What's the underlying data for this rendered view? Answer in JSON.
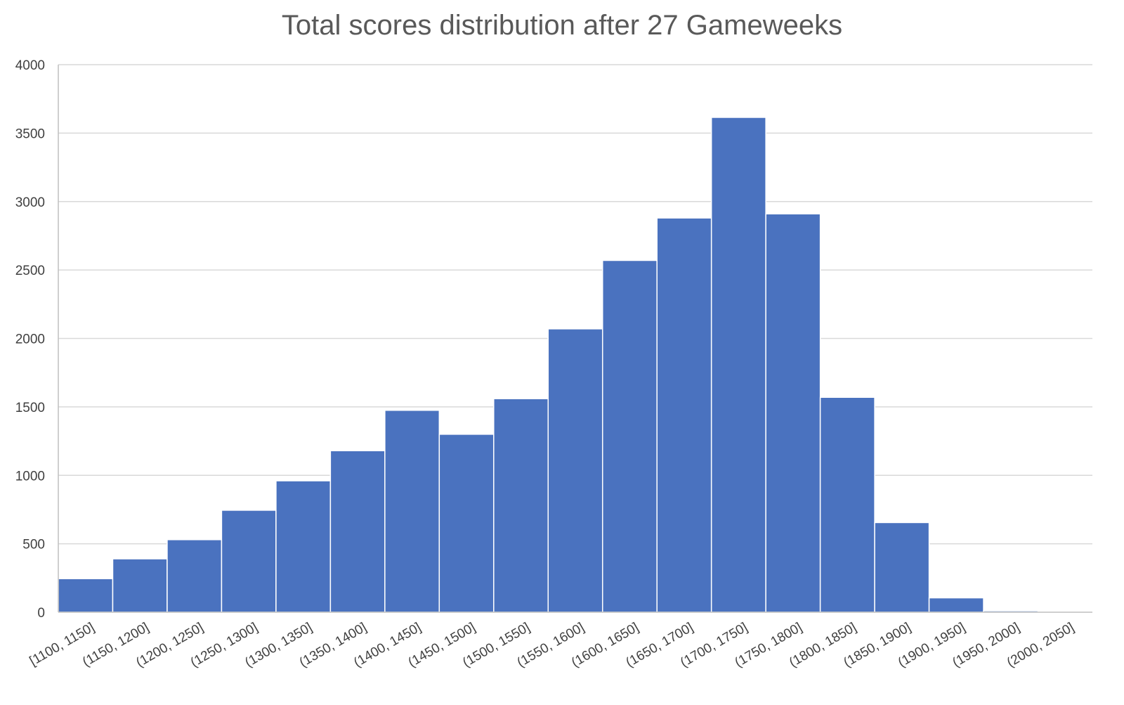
{
  "chart_data": {
    "type": "bar",
    "title": "Total scores distribution after 27 Gameweeks",
    "xlabel": "",
    "ylabel": "",
    "categories": [
      "[1100, 1150]",
      "(1150, 1200]",
      "(1200, 1250]",
      "(1250, 1300]",
      "(1300, 1350]",
      "(1350, 1400]",
      "(1400, 1450]",
      "(1450, 1500]",
      "(1500, 1550]",
      "(1550, 1600]",
      "(1600, 1650]",
      "(1650, 1700]",
      "(1700, 1750]",
      "(1750, 1800]",
      "(1800, 1850]",
      "(1850, 1900]",
      "(1900, 1950]",
      "(1950, 2000]",
      "(2000, 2050]"
    ],
    "values": [
      245,
      390,
      530,
      745,
      960,
      1180,
      1475,
      1300,
      1560,
      2070,
      2570,
      2880,
      3615,
      2910,
      1570,
      655,
      105,
      10,
      0
    ],
    "ylim": [
      0,
      4000
    ],
    "yticks": [
      0,
      500,
      1000,
      1500,
      2000,
      2500,
      3000,
      3500,
      4000
    ],
    "grid": true,
    "legend": "none",
    "colors": {
      "bar": "#4a72bf",
      "bar_edge": "#ffffff",
      "grid": "#d9d9d9",
      "axis": "#bfbfbf",
      "text": "#595959",
      "tick_text": "#404040"
    }
  }
}
